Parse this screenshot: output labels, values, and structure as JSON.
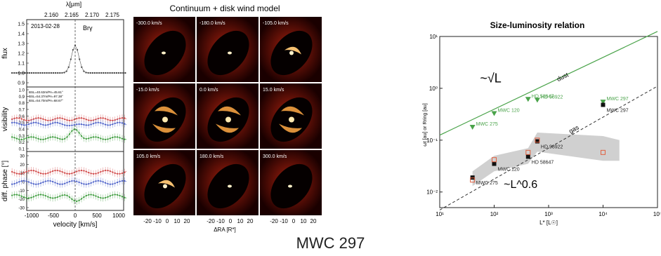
{
  "caption": "MWC 297",
  "left_panel": {
    "top_axis_label": "λ[μm]",
    "top_ticks": [
      "2.160",
      "2.165",
      "2.170",
      "2.175"
    ],
    "date": "2013-02-28",
    "line_label": "Brγ",
    "flux_label": "flux",
    "flux_ticks": [
      "1.5",
      "1.4",
      "1.3",
      "1.2",
      "1.1",
      "1.0",
      "0.9"
    ],
    "vis_label": "visibility",
    "vis_ticks": [
      "1.0",
      "0.9",
      "0.8",
      "0.7",
      "0.6",
      "0.5",
      "0.4",
      "0.3",
      "0.2",
      "0.1"
    ],
    "baselines": [
      "BSL=40.63m/PA=45.61°",
      "BSL=54.37m/PA=97.38°",
      "BSL=54.70m/PA=68.67°"
    ],
    "phase_label": "diff. phase [°]",
    "phase_ticks": [
      "30",
      "20",
      "10",
      "0",
      "-10",
      "-20",
      "-30"
    ],
    "xlabel": "velocity [km/s]",
    "x_ticks": [
      "-1000",
      "-500",
      "0",
      "500",
      "1000"
    ]
  },
  "middle_panel": {
    "title": "Continuum + disk wind model",
    "tiles": [
      {
        "label": "-300.0 km/s"
      },
      {
        "label": "-180.0 km/s"
      },
      {
        "label": "-105.0 km/s"
      },
      {
        "label": "-15.0 km/s"
      },
      {
        "label": "0.0 km/s"
      },
      {
        "label": "15.0 km/s"
      },
      {
        "label": "105.0 km/s"
      },
      {
        "label": "180.0 km/s"
      },
      {
        "label": "300.0 km/s"
      }
    ],
    "x_ticks": [
      "-20",
      "-10",
      "0",
      "10",
      "20"
    ],
    "xlabel": "ΔRA [R*]"
  },
  "chart_data": {
    "type": "scatter",
    "title": "Size-luminosity relation",
    "xlabel": "L* [L☉]",
    "ylabel": "ωt [au] or Rring [au]",
    "xscale": "log",
    "yscale": "log",
    "xlim": [
      10,
      100000
    ],
    "ylim": [
      0.005,
      10
    ],
    "x_ticks": [
      "10¹",
      "10²",
      "10³",
      "10⁴",
      "10⁵"
    ],
    "y_ticks": [
      "10¹",
      "10⁰",
      "10⁻¹",
      "10⁻²"
    ],
    "grid": false,
    "line_labels": [
      "dust",
      "gas"
    ],
    "annotations": [
      "~√L",
      "~L^0.6"
    ],
    "colors": {
      "dust": "#4aa34a",
      "gas": "#333333",
      "open": "#e06040",
      "band": "#c8c8c8"
    },
    "series": [
      {
        "name": "dust",
        "points": [
          {
            "label": "MWC 275",
            "x": 40,
            "y": 0.18
          },
          {
            "label": "MWC 120",
            "x": 100,
            "y": 0.33
          },
          {
            "label": "HD 58647",
            "x": 420,
            "y": 0.62
          },
          {
            "label": "HD 98922",
            "x": 620,
            "y": 0.6
          },
          {
            "label": "MWC 297",
            "x": 10000,
            "y": 0.55
          }
        ]
      },
      {
        "name": "gas",
        "points": [
          {
            "label": "MWC 275",
            "x": 40,
            "y": 0.019
          },
          {
            "label": "MWC 120",
            "x": 100,
            "y": 0.035
          },
          {
            "label": "HD 58647",
            "x": 420,
            "y": 0.048
          },
          {
            "label": "HD 98922",
            "x": 620,
            "y": 0.095
          },
          {
            "label": "MWC 297",
            "x": 10000,
            "y": 0.48
          }
        ]
      },
      {
        "name": "open",
        "points": [
          {
            "x": 40,
            "y": 0.017
          },
          {
            "x": 100,
            "y": 0.042
          },
          {
            "x": 420,
            "y": 0.058
          },
          {
            "x": 620,
            "y": 0.1
          },
          {
            "x": 10000,
            "y": 0.058
          }
        ]
      }
    ],
    "fits": {
      "dust": {
        "x": [
          10,
          100000
        ],
        "y": [
          0.125,
          12.5
        ]
      },
      "gas": {
        "x": [
          10,
          100000
        ],
        "y": [
          0.0045,
          1.1
        ]
      }
    }
  }
}
